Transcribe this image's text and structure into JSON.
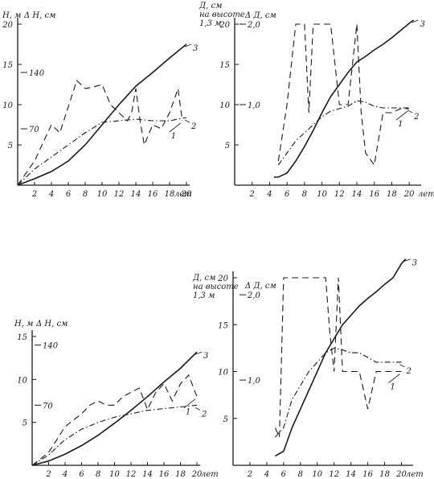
{
  "chart_data": [
    {
      "type": "line",
      "y_axis_label": "H, м",
      "y2_axis_label": "Δ H, см",
      "x_unit": "лет",
      "xlim": [
        0,
        20
      ],
      "ylim": [
        0,
        20
      ],
      "x_ticks": [
        "2",
        "4",
        "6",
        "8",
        "10",
        "12",
        "14",
        "16",
        "18",
        "20"
      ],
      "y_ticks": [
        "5",
        "10",
        "15",
        "20"
      ],
      "y2_ticks": [
        "70",
        "140"
      ],
      "series": [
        {
          "name": "1",
          "x": [
            0,
            2,
            4,
            5,
            7,
            8,
            9,
            10,
            11,
            12,
            13,
            13.5,
            14,
            14.5,
            15,
            16,
            17,
            18,
            19,
            19.5
          ],
          "y": [
            0,
            3,
            7.5,
            6.5,
            13,
            12,
            12.2,
            12.5,
            10,
            9,
            8,
            9,
            12,
            8,
            5,
            7.5,
            7,
            9,
            12,
            8
          ]
        },
        {
          "name": "2",
          "x": [
            0,
            2,
            4,
            6,
            8,
            10,
            12,
            14,
            16,
            18,
            20
          ],
          "y": [
            0,
            2,
            3.5,
            5,
            6.5,
            7.8,
            8,
            8.2,
            8,
            8,
            8.4
          ]
        },
        {
          "name": "3",
          "x": [
            0,
            2,
            4,
            6,
            8,
            10,
            12,
            14,
            16,
            18,
            20
          ],
          "y": [
            0,
            0.8,
            1.7,
            3,
            5,
            7.5,
            10,
            12.3,
            14,
            15.8,
            17.5
          ]
        }
      ]
    },
    {
      "type": "line",
      "y_axis_label": "Д, см на высоте 1,3 м",
      "y2_axis_label": "Δ Д, см",
      "x_unit": "лет",
      "xlim": [
        0,
        21
      ],
      "ylim": [
        0,
        20
      ],
      "x_ticks": [
        "2",
        "4",
        "6",
        "8",
        "10",
        "12",
        "14",
        "16",
        "18",
        "20"
      ],
      "y_ticks": [
        "5",
        "10",
        "15",
        "20"
      ],
      "y2_ticks": [
        "1,0",
        "2,0"
      ],
      "series": [
        {
          "name": "1",
          "x": [
            5,
            6,
            7,
            8,
            8.5,
            9,
            10,
            11,
            12,
            13,
            14,
            14.5,
            15,
            16,
            17,
            18,
            19,
            20
          ],
          "y": [
            3,
            10,
            20,
            20,
            9,
            20,
            20,
            20,
            10,
            10,
            20,
            9,
            4,
            2.5,
            9,
            9,
            9.5,
            9.5
          ]
        },
        {
          "name": "2",
          "x": [
            5,
            6,
            7,
            8,
            9,
            10,
            11,
            12,
            13,
            14,
            15,
            16,
            17,
            18,
            19,
            20
          ],
          "y": [
            2.5,
            4,
            5.5,
            6.5,
            7.5,
            8.5,
            9.2,
            9.5,
            9.8,
            10.5,
            10.3,
            9.8,
            9.6,
            9.6,
            9.6,
            9.6
          ]
        },
        {
          "name": "3",
          "x": [
            4.5,
            5,
            6,
            7,
            8,
            9,
            10,
            11,
            12,
            13,
            14,
            15,
            16,
            17,
            18,
            19,
            20,
            20.5
          ],
          "y": [
            1,
            1,
            1.5,
            3,
            4.8,
            6.8,
            9,
            11,
            12.5,
            14,
            15.3,
            16,
            16.8,
            17.5,
            18.3,
            19.2,
            20.1,
            20.5
          ]
        }
      ]
    },
    {
      "type": "line",
      "y_axis_label": "Н, м",
      "y2_axis_label": "Δ Н, см",
      "x_unit": "лет",
      "xlim": [
        0,
        20
      ],
      "ylim": [
        0,
        15
      ],
      "x_ticks": [
        "2",
        "4",
        "6",
        "8",
        "10",
        "12",
        "14",
        "16",
        "18",
        "20"
      ],
      "y_ticks": [
        "5",
        "10",
        "15"
      ],
      "y2_ticks": [
        "70",
        "140"
      ],
      "series": [
        {
          "name": "1",
          "x": [
            0,
            2,
            3,
            4,
            6,
            7,
            8,
            9,
            10,
            11,
            12,
            13,
            14,
            15,
            16,
            17,
            18,
            19,
            20
          ],
          "y": [
            0,
            1.5,
            3,
            4.5,
            6,
            7,
            7.5,
            7,
            7,
            8,
            8.5,
            9,
            6.5,
            8.5,
            9.5,
            7.5,
            9.5,
            10.5,
            8
          ]
        },
        {
          "name": "2",
          "x": [
            0,
            2,
            4,
            6,
            8,
            10,
            12,
            14,
            16,
            18,
            20
          ],
          "y": [
            0,
            1.2,
            3,
            4.2,
            5,
            5.6,
            6,
            6.4,
            6.6,
            6.8,
            7
          ]
        },
        {
          "name": "3",
          "x": [
            0,
            2,
            4,
            6,
            8,
            10,
            12,
            14,
            16,
            18,
            20
          ],
          "y": [
            0,
            0.5,
            1.3,
            2.3,
            3.5,
            4.9,
            6.4,
            8,
            9.7,
            11.3,
            13.2
          ]
        }
      ]
    },
    {
      "type": "line",
      "y_axis_label": "Д, см на высоте 1,3 м",
      "y2_axis_label": "Δ Д, см",
      "x_unit": "лет",
      "xlim": [
        0,
        21
      ],
      "ylim": [
        0,
        20
      ],
      "x_ticks": [
        "2",
        "4",
        "6",
        "8",
        "10",
        "12",
        "14",
        "16",
        "18",
        "20"
      ],
      "y_ticks": [
        "5",
        "10",
        "15",
        "20"
      ],
      "y2_ticks": [
        "1,0",
        "2,0"
      ],
      "series": [
        {
          "name": "1",
          "x": [
            5,
            5.5,
            6,
            7,
            8,
            9,
            10,
            11,
            11.5,
            12,
            12.5,
            13,
            14,
            15,
            16,
            17,
            18,
            19,
            20
          ],
          "y": [
            4,
            3,
            20,
            20,
            20,
            20,
            20,
            20,
            14,
            10,
            20,
            10,
            10,
            10,
            6,
            10,
            10,
            10,
            10
          ]
        },
        {
          "name": "2",
          "x": [
            5,
            6,
            7,
            8,
            9,
            10,
            11,
            12,
            13,
            14,
            15,
            16,
            17,
            18,
            19,
            20
          ],
          "y": [
            3,
            4,
            7,
            8.5,
            10,
            11,
            12,
            12.5,
            12.3,
            12,
            12,
            11.5,
            11,
            11,
            11,
            11
          ]
        },
        {
          "name": "3",
          "x": [
            5,
            6,
            7,
            8,
            9,
            10,
            11,
            12,
            13,
            14,
            15,
            16,
            17,
            18,
            19,
            20,
            20.5
          ],
          "y": [
            1,
            1.5,
            4,
            6,
            8,
            10,
            12,
            13.5,
            15,
            16,
            17,
            17.8,
            18.5,
            19.3,
            20,
            21.5,
            22
          ]
        }
      ]
    }
  ]
}
